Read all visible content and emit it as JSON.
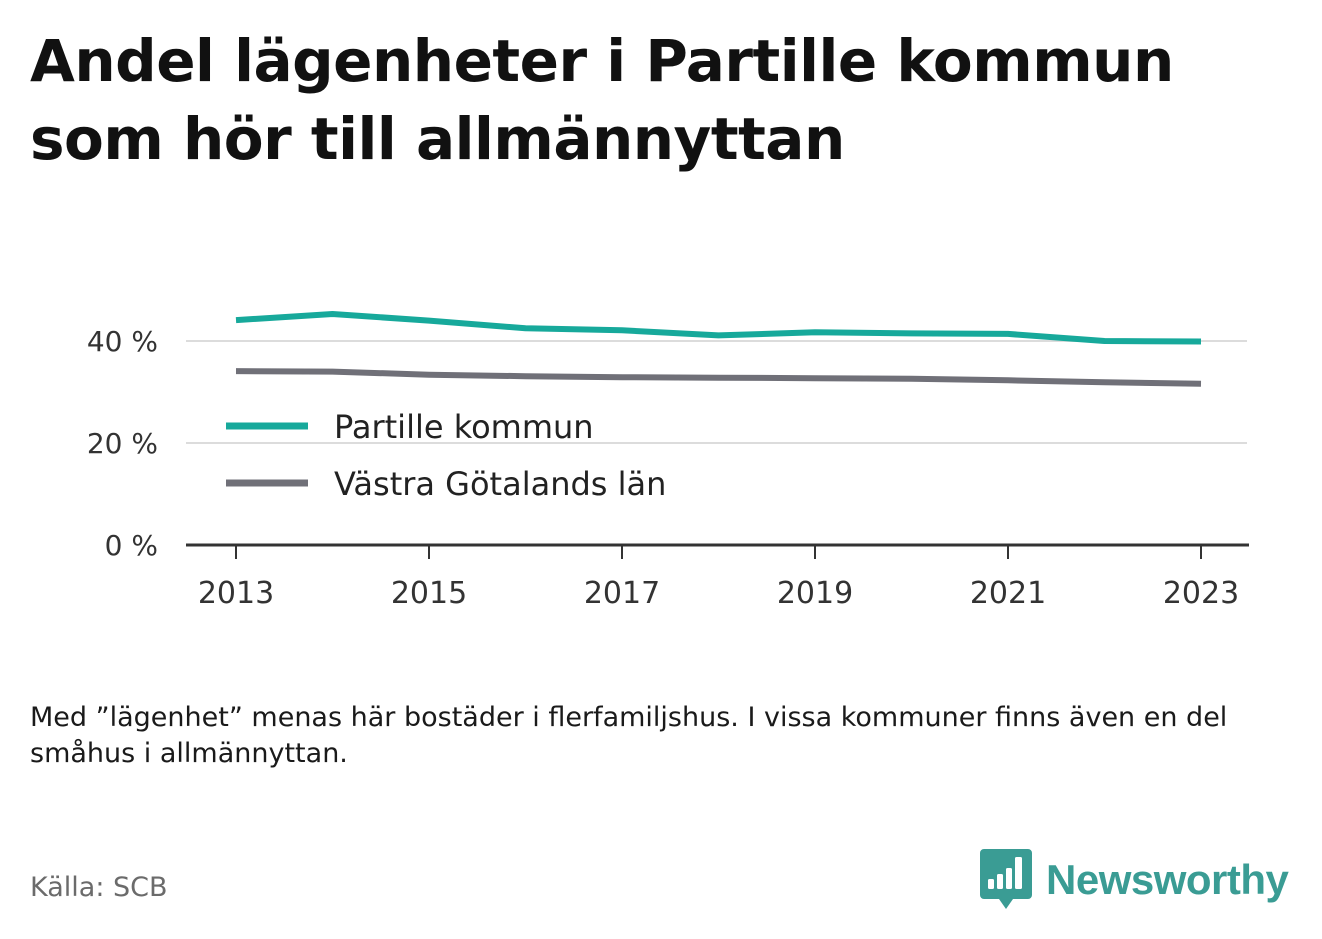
{
  "header": {
    "title": "Andel lägenheter i Partille kommun som hör till allmännyttan"
  },
  "chart_data": {
    "type": "line",
    "x": [
      2013,
      2014,
      2015,
      2016,
      2017,
      2018,
      2019,
      2020,
      2021,
      2022,
      2023
    ],
    "series": [
      {
        "name": "Partille kommun",
        "color": "#17a99b",
        "values": [
          44.1,
          45.3,
          44.0,
          42.5,
          42.1,
          41.1,
          41.7,
          41.5,
          41.4,
          40.0,
          39.9
        ]
      },
      {
        "name": "Västra Götalands län",
        "color": "#707078",
        "values": [
          34.1,
          34.0,
          33.4,
          33.1,
          32.9,
          32.8,
          32.7,
          32.6,
          32.3,
          31.9,
          31.6
        ]
      }
    ],
    "xticks": [
      "2013",
      "2015",
      "2017",
      "2019",
      "2021",
      "2023"
    ],
    "yticks": [
      "0 %",
      "20 %",
      "40 %"
    ],
    "ytick_values": [
      0,
      20,
      40
    ],
    "ylim": [
      0,
      49
    ],
    "xlabel": "",
    "ylabel": "",
    "grid": true,
    "legend": "left"
  },
  "footer": {
    "note": "Med ”lägenhet” menas här bostäder i flerfamiljshus. I vissa kommuner finns även en del småhus i allmännyttan.",
    "source": "Källa: SCB",
    "brand": "Newsworthy"
  },
  "colors": {
    "brand": "#3a9c94",
    "grid": "#dcdcdc",
    "axis": "#333333"
  },
  "icons": {
    "brand_logo": "bar-chart-speech-bubble-icon"
  }
}
